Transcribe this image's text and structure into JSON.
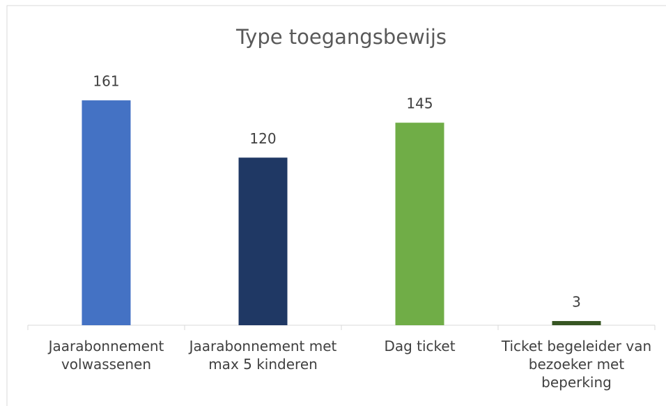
{
  "chart_data": {
    "type": "bar",
    "title": "Type toegangsbewijs",
    "categories": [
      "Jaarabonnement volwassenen",
      "Jaarabonnement met max 5 kinderen",
      "Dag ticket",
      "Ticket begeleider van bezoeker met beperking"
    ],
    "values": [
      161,
      120,
      145,
      3
    ],
    "colors": [
      "#4472c4",
      "#1f3864",
      "#70ad47",
      "#375623"
    ],
    "ylim": [
      0,
      180
    ]
  }
}
